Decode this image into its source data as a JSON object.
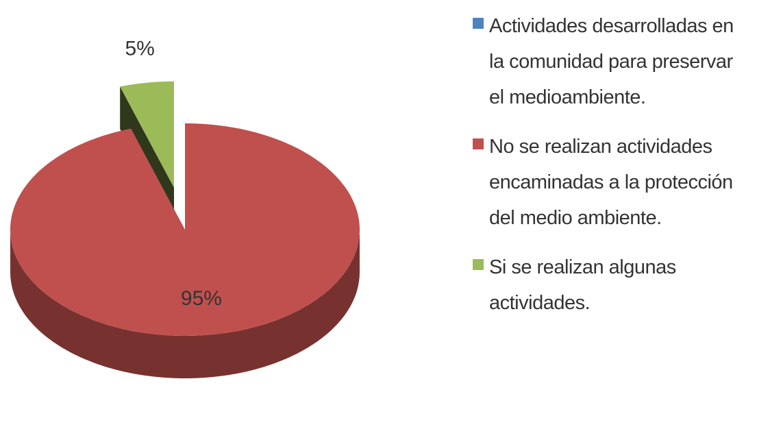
{
  "chart_data": {
    "type": "pie",
    "categories": [
      "Actividades desarrolladas en la comunidad para preservar el medioambiente.",
      "No se realizan actividades encaminadas a la protección del medio ambiente.",
      "Si se realizan algunas actividades."
    ],
    "values": [
      0,
      95,
      5
    ],
    "value_labels": [
      null,
      "95%",
      "5%"
    ],
    "colors": [
      "#4f81bd",
      "#c0504d",
      "#9bbb59"
    ],
    "legend": "right"
  }
}
